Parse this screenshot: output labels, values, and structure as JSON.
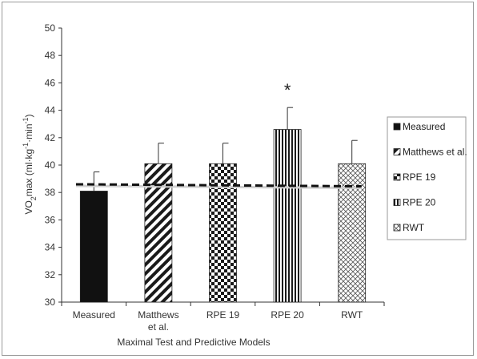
{
  "chart_data": {
    "type": "bar",
    "title": "",
    "xlabel": "Maximal Test and Predictive Models",
    "ylabel_main": "VO",
    "ylabel_sub": "2",
    "ylabel_tail": "max (ml·kg",
    "ylabel_sup1": "-1",
    "ylabel_mid": "·min",
    "ylabel_sup2": "-1",
    "ylabel_end": ")",
    "ylim": [
      30,
      50
    ],
    "yticks": [
      "30",
      "32",
      "34",
      "36",
      "38",
      "40",
      "42",
      "44",
      "46",
      "48",
      "50"
    ],
    "categories": [
      {
        "lines": [
          "Measured"
        ]
      },
      {
        "lines": [
          "Matthews",
          "et al."
        ]
      },
      {
        "lines": [
          "RPE 19"
        ]
      },
      {
        "lines": [
          "RPE 20"
        ]
      },
      {
        "lines": [
          "RWT"
        ]
      }
    ],
    "values": [
      38.1,
      40.1,
      40.1,
      42.6,
      40.1
    ],
    "error": [
      1.4,
      1.5,
      1.5,
      1.6,
      1.7
    ],
    "patterns": [
      "solid",
      "diagonal",
      "checker",
      "vertical",
      "crosshatch"
    ],
    "annotation": {
      "text": "*",
      "category_index": 3
    },
    "reference_line": {
      "y_start": 38.6,
      "y_end": 38.45,
      "style": "dashed"
    },
    "legend": {
      "placement": "right",
      "entries": [
        "Measured",
        "Matthews et al.",
        "RPE 19",
        "RPE 20",
        "RWT"
      ]
    },
    "grid": false
  }
}
